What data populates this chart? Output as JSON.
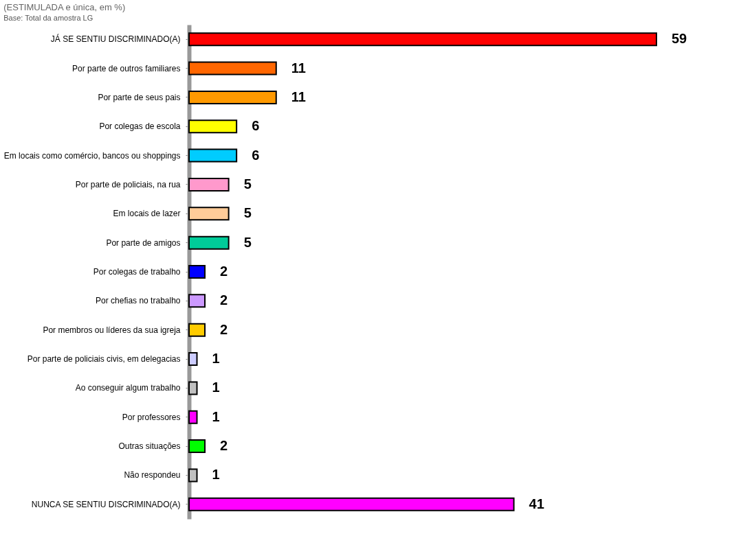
{
  "chart_data": {
    "type": "bar",
    "orientation": "horizontal",
    "subtitle": "(ESTIMULADA e única,  em %)",
    "annotations": [
      "Base: Total da amostra LG"
    ],
    "categories": [
      "JÁ SE SENTIU DISCRIMINADO(A)",
      "Por parte de outros familiares",
      "Por parte de seus pais",
      "Por colegas de escola",
      "Em locais como comércio, bancos ou shoppings",
      "Por parte de policiais, na rua",
      "Em locais de lazer",
      "Por parte de amigos",
      "Por colegas de trabalho",
      "Por chefias no trabalho",
      "Por membros ou líderes da sua igreja",
      "Por parte de policiais civis, em delegacias",
      "Ao conseguir algum trabalho",
      "Por professores",
      "Outras situações",
      "Não respondeu",
      "NUNCA SE SENTIU DISCRIMINADO(A)"
    ],
    "values": [
      59,
      11,
      11,
      6,
      6,
      5,
      5,
      5,
      2,
      2,
      2,
      1,
      1,
      1,
      2,
      1,
      41
    ],
    "colors": [
      "#ff0000",
      "#ff6600",
      "#ff9900",
      "#ffff00",
      "#00ccff",
      "#ff99cc",
      "#ffcc99",
      "#00cc99",
      "#0000ff",
      "#cc99ff",
      "#ffcc00",
      "#ccccff",
      "#c0c0c0",
      "#ff00ff",
      "#00ff00",
      "#c0c0c0",
      "#ff00ff"
    ],
    "data_labels": true,
    "tick_labels": "y"
  }
}
